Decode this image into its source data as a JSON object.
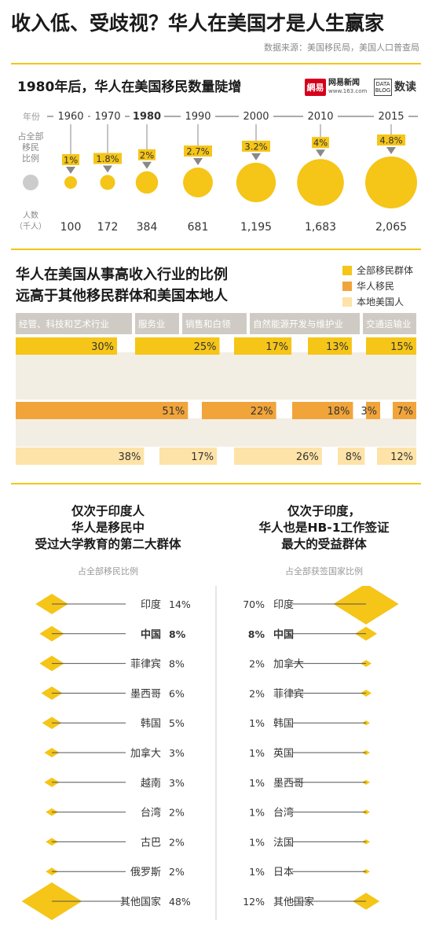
{
  "header": {
    "title": "收入低、受歧视？华人在美国才是人生赢家",
    "source": "数据来源：美国移民局，美国人口普查局"
  },
  "section1": {
    "title": "1980年后，华人在美国移民数量陡增",
    "logo_netease_mark": "網易",
    "logo_netease_text": "网易新闻",
    "logo_netease_url": "www.163.com",
    "logo_data_mark_line1": "DATA",
    "logo_data_mark_line2": "BLOG",
    "logo_data_text": "数读",
    "year_label": "年份",
    "share_label": [
      "占全部",
      "移民",
      "比例"
    ],
    "count_label": [
      "人数",
      "（千人）"
    ]
  },
  "section2": {
    "title_line1": "华人在美国从事高收入行业的比例",
    "title_line2": "远高于其他移民群体和美国本地人"
  },
  "section3": {
    "left_title": [
      "仅次于印度人",
      "华人是移民中",
      "受过大学教育的第二大群体"
    ],
    "left_subtitle": "占全部移民比例",
    "right_title": [
      "仅次于印度，",
      "华人也是HB-1工作签证",
      "最大的受益群体"
    ],
    "right_subtitle": "占全部获签国家比例"
  },
  "chart_data": [
    {
      "type": "bubble",
      "title": "1980年后，华人在美国移民数量陡增",
      "x": [
        "1960",
        "1970",
        "1980",
        "1990",
        "2000",
        "2010",
        "2015"
      ],
      "share_labels": [
        "1%",
        "1.8%",
        "2%",
        "2.7%",
        "3.2%",
        "4%",
        "4.8%"
      ],
      "share_values": [
        1,
        1.8,
        2,
        2.7,
        3.2,
        4,
        4.8
      ],
      "count_labels": [
        "100",
        "172",
        "384",
        "681",
        "1,195",
        "1,683",
        "2,065"
      ],
      "count_values": [
        100,
        172,
        384,
        681,
        1195,
        1683,
        2065
      ],
      "highlight_year": "1980",
      "colors": {
        "bubble": "#f5c518",
        "label_bg": "#f5c518",
        "example": "#cccccc",
        "arrow": "#888888"
      }
    },
    {
      "type": "bar",
      "title": "华人在美国从事高收入行业的比例远高于其他移民群体和美国本地人",
      "categories": [
        "经管、科技和艺术行业",
        "服务业",
        "销售和白领",
        "自然能源开发与维护业",
        "交通运输业"
      ],
      "series": [
        {
          "name": "全部移民群体",
          "values": [
            30,
            25,
            17,
            13,
            15
          ],
          "labels": [
            "30%",
            "25%",
            "17%",
            "13%",
            "15%"
          ],
          "color": "#f5c518"
        },
        {
          "name": "华人移民",
          "values": [
            51,
            22,
            18,
            3,
            7
          ],
          "labels": [
            "51%",
            "22%",
            "18%",
            "3%",
            "7%"
          ],
          "color": "#f0a43a"
        },
        {
          "name": "本地美国人",
          "values": [
            38,
            17,
            26,
            8,
            12
          ],
          "labels": [
            "38%",
            "17%",
            "26%",
            "8%",
            "12%"
          ],
          "color": "#fde3a7"
        }
      ],
      "colors": {
        "band": "#f3eee4",
        "header": "#cfcbc4",
        "header_text": "#ffffff"
      }
    },
    {
      "type": "diamond",
      "title": "仅次于印度人 华人是移民中 受过大学教育的第二大群体",
      "subtitle": "占全部移民比例",
      "categories": [
        "印度",
        "中国",
        "菲律宾",
        "墨西哥",
        "韩国",
        "加拿大",
        "越南",
        "台湾",
        "古巴",
        "俄罗斯",
        "其他国家"
      ],
      "values": [
        14,
        8,
        8,
        6,
        5,
        3,
        3,
        2,
        2,
        2,
        48
      ],
      "labels": [
        "14%",
        "8%",
        "8%",
        "6%",
        "5%",
        "3%",
        "3%",
        "2%",
        "2%",
        "2%",
        "48%"
      ],
      "highlight": "中国",
      "color": "#f5c518"
    },
    {
      "type": "diamond",
      "title": "仅次于印度， 华人也是HB-1工作签证 最大的受益群体",
      "subtitle": "占全部获签国家比例",
      "categories": [
        "印度",
        "中国",
        "加拿大",
        "菲律宾",
        "韩国",
        "英国",
        "墨西哥",
        "台湾",
        "法国",
        "日本",
        "其他国家"
      ],
      "values": [
        70,
        8,
        2,
        2,
        1,
        1,
        1,
        1,
        1,
        1,
        12
      ],
      "labels": [
        "70%",
        "8%",
        "2%",
        "2%",
        "1%",
        "1%",
        "1%",
        "1%",
        "1%",
        "1%",
        "12%"
      ],
      "highlight": "中国",
      "color": "#f5c518"
    }
  ]
}
